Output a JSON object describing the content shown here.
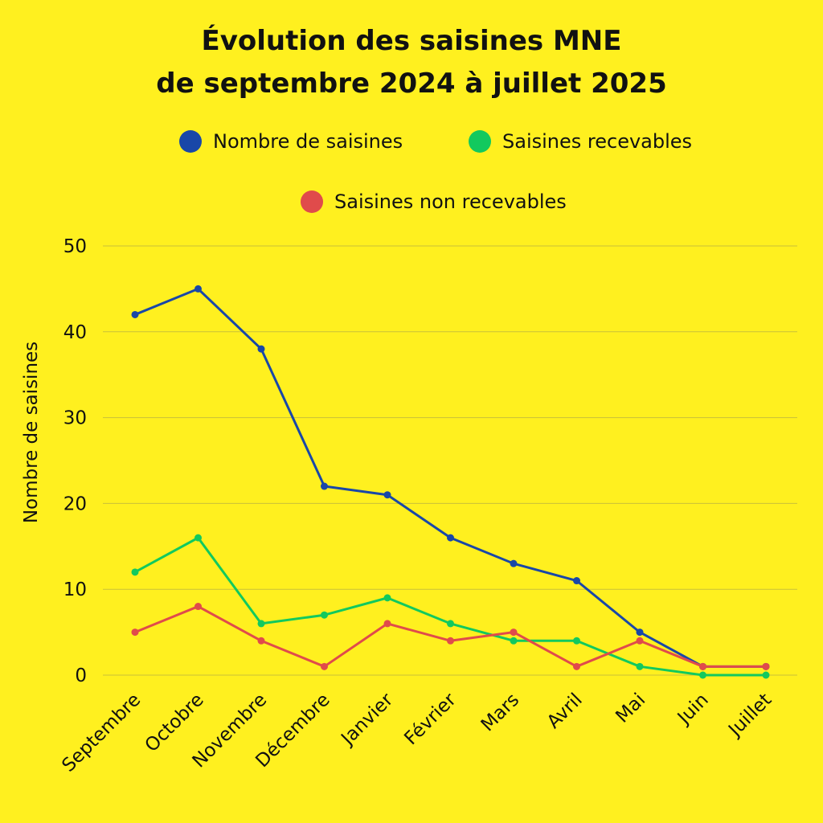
{
  "chart_data": {
    "type": "line",
    "title_lines": [
      "Évolution des saisines MNE",
      "de septembre 2024 à juillet 2025"
    ],
    "xlabel": "",
    "ylabel": "Nombre de saisines",
    "categories": [
      "Septembre",
      "Octobre",
      "Novembre",
      "Décembre",
      "Janvier",
      "Février",
      "Mars",
      "Avril",
      "Mai",
      "Juin",
      "Juillet"
    ],
    "ylim": [
      0,
      50
    ],
    "yticks": [
      0,
      10,
      20,
      30,
      40,
      50
    ],
    "grid": true,
    "legend_position": "top",
    "series": [
      {
        "name": "Nombre de saisines",
        "color": "#1947A8",
        "values": [
          42,
          45,
          38,
          22,
          21,
          16,
          13,
          11,
          5,
          1,
          1
        ]
      },
      {
        "name": "Saisines recevables",
        "color": "#12C95E",
        "values": [
          12,
          16,
          6,
          7,
          9,
          6,
          4,
          4,
          1,
          0,
          0
        ]
      },
      {
        "name": "Saisines non recevables",
        "color": "#E04B4B",
        "values": [
          5,
          8,
          4,
          1,
          6,
          4,
          5,
          1,
          4,
          1,
          1
        ]
      }
    ]
  }
}
